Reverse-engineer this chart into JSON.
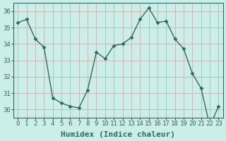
{
  "x": [
    0,
    1,
    2,
    3,
    4,
    5,
    6,
    7,
    8,
    9,
    10,
    11,
    12,
    13,
    14,
    15,
    16,
    17,
    18,
    19,
    20,
    21,
    22,
    23
  ],
  "y": [
    35.3,
    35.5,
    34.3,
    33.8,
    30.7,
    30.4,
    30.2,
    30.1,
    31.2,
    33.5,
    33.1,
    33.9,
    34.0,
    34.4,
    35.5,
    36.2,
    35.3,
    35.4,
    34.3,
    33.7,
    32.2,
    31.3,
    29.0,
    30.2
  ],
  "line_color": "#2e6b5e",
  "marker": "D",
  "marker_size": 2.5,
  "bg_color": "#cceee8",
  "grid_color": "#c8b8b8",
  "axis_color": "#2e6b5e",
  "xlabel": "Humidex (Indice chaleur)",
  "xlim": [
    -0.5,
    23.5
  ],
  "ylim": [
    29.5,
    36.5
  ],
  "yticks": [
    30,
    31,
    32,
    33,
    34,
    35,
    36
  ],
  "xticks": [
    0,
    1,
    2,
    3,
    4,
    5,
    6,
    7,
    8,
    9,
    10,
    11,
    12,
    13,
    14,
    15,
    16,
    17,
    18,
    19,
    20,
    21,
    22,
    23
  ],
  "tick_fontsize": 6.5,
  "label_fontsize": 8
}
